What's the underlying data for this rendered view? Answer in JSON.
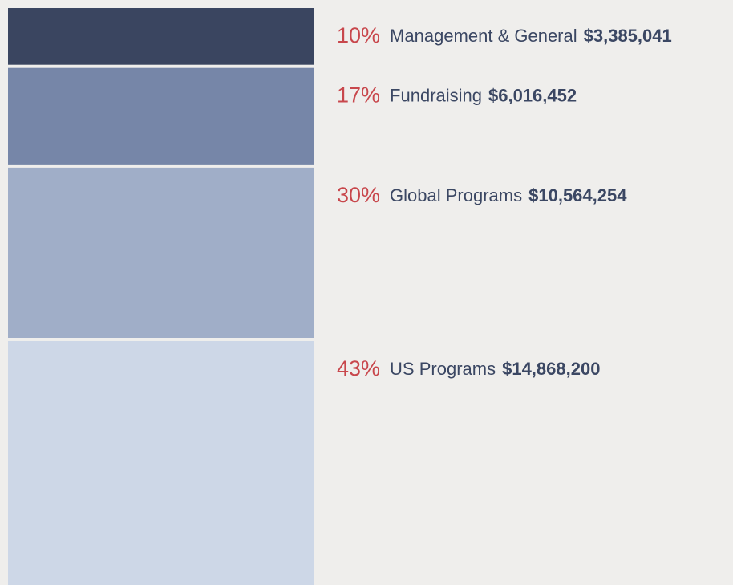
{
  "chart_data": {
    "type": "stacked_column",
    "categories": [
      "Management & General",
      "Fundraising",
      "Global Programs",
      "US Programs"
    ],
    "values": [
      10,
      17,
      30,
      43
    ],
    "value_labels": [
      "10%",
      "17%",
      "30%",
      "43%"
    ],
    "amounts": [
      3385041,
      6016452,
      10564254,
      14868200
    ],
    "amount_labels": [
      "$3,385,041",
      "$6,016,452",
      "$10,564,254",
      "$14,868,200"
    ],
    "colors": [
      "#3a4560",
      "#7686a8",
      "#a0aec8",
      "#cdd7e7"
    ]
  }
}
